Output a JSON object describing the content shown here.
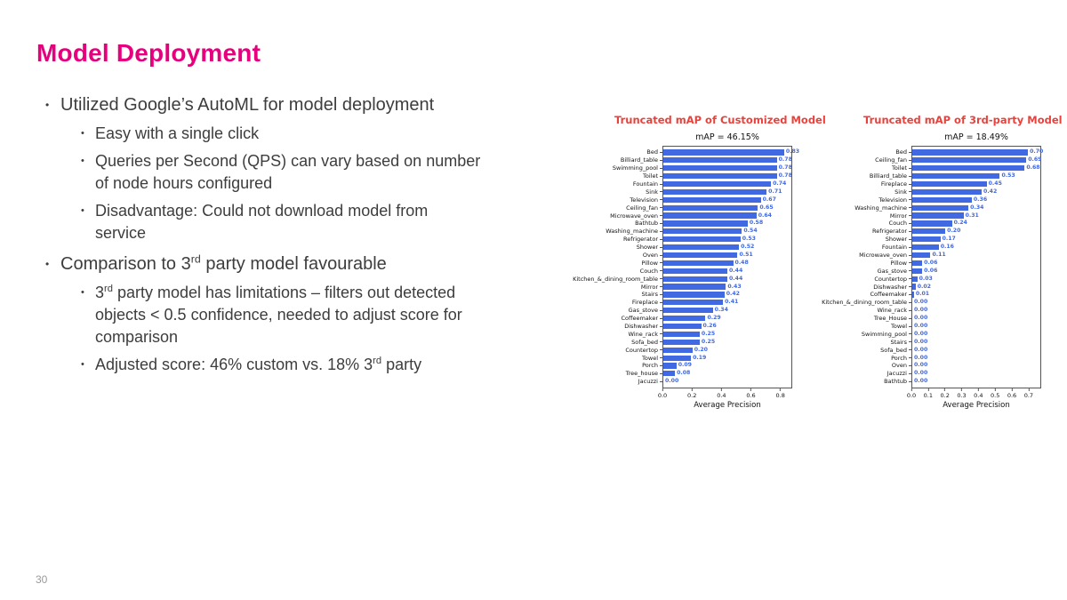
{
  "slide": {
    "title": "Model Deployment",
    "title_color": "#e6007e",
    "page_number": "30"
  },
  "bullets": [
    {
      "level": 1,
      "segments": [
        {
          "t": "Utilized Google’s AutoML for model deployment"
        }
      ]
    },
    {
      "level": 2,
      "segments": [
        {
          "t": "Easy with a single click"
        }
      ]
    },
    {
      "level": 2,
      "segments": [
        {
          "t": "Queries per Second (QPS) can vary based on number of node hours configured"
        }
      ]
    },
    {
      "level": 2,
      "segments": [
        {
          "t": "Disadvantage: Could not download model from service"
        }
      ]
    },
    {
      "level": 1,
      "segments": [
        {
          "t": "Comparison to 3"
        },
        {
          "t": "rd",
          "sup": true
        },
        {
          "t": " party model favourable"
        }
      ]
    },
    {
      "level": 2,
      "segments": [
        {
          "t": "3"
        },
        {
          "t": "rd",
          "sup": true
        },
        {
          "t": " party model has limitations – filters out detected objects < 0.5 confidence, needed to adjust score for comparison"
        }
      ]
    },
    {
      "level": 2,
      "segments": [
        {
          "t": "Adjusted score: 46% custom vs. 18% 3"
        },
        {
          "t": "rd",
          "sup": true
        },
        {
          "t": " party"
        }
      ]
    }
  ],
  "chart_data": [
    {
      "type": "bar",
      "orientation": "horizontal",
      "title": "Truncated mAP of Customized Model",
      "title_color": "#e8423c",
      "subtitle": "mAP = 46.15%",
      "xlabel": "Average Precision",
      "xticks": [
        0.0,
        0.2,
        0.4,
        0.6,
        0.8
      ],
      "xlim": [
        0,
        0.88
      ],
      "grid": false,
      "bar_color": "#4169e1",
      "value_color": "#4169e1",
      "categories": [
        "Bed",
        "Billiard_table",
        "Swimming_pool",
        "Toilet",
        "Fountain",
        "Sink",
        "Television",
        "Ceiling_fan",
        "Microwave_oven",
        "Bathtub",
        "Washing_machine",
        "Refrigerator",
        "Shower",
        "Oven",
        "Pillow",
        "Couch",
        "Kitchen_&_dining_room_table",
        "Mirror",
        "Stairs",
        "Fireplace",
        "Gas_stove",
        "Coffeemaker",
        "Dishwasher",
        "Wine_rack",
        "Sofa_bed",
        "Countertop",
        "Towel",
        "Porch",
        "Tree_house",
        "Jacuzzi"
      ],
      "values": [
        0.83,
        0.78,
        0.78,
        0.78,
        0.74,
        0.71,
        0.67,
        0.65,
        0.64,
        0.58,
        0.54,
        0.53,
        0.52,
        0.51,
        0.48,
        0.44,
        0.44,
        0.43,
        0.42,
        0.41,
        0.34,
        0.29,
        0.26,
        0.25,
        0.25,
        0.2,
        0.19,
        0.09,
        0.08,
        0.0
      ]
    },
    {
      "type": "bar",
      "orientation": "horizontal",
      "title": "Truncated mAP of 3rd-party Model",
      "title_color": "#e8423c",
      "subtitle": "mAP = 18.49%",
      "xlabel": "Average Precision",
      "xticks": [
        0.0,
        0.1,
        0.2,
        0.3,
        0.4,
        0.5,
        0.6,
        0.7
      ],
      "xlim": [
        0,
        0.775
      ],
      "grid": false,
      "bar_color": "#4169e1",
      "value_color": "#4169e1",
      "categories": [
        "Bed",
        "Ceiling_fan",
        "Toilet",
        "Billiard_table",
        "Fireplace",
        "Sink",
        "Television",
        "Washing_machine",
        "Mirror",
        "Couch",
        "Refrigerator",
        "Shower",
        "Fountain",
        "Microwave_oven",
        "Pillow",
        "Gas_stove",
        "Countertop",
        "Dishwasher",
        "Coffeemaker",
        "Kitchen_&_dining_room_table",
        "Wine_rack",
        "Tree_House",
        "Towel",
        "Swimming_pool",
        "Stairs",
        "Sofa_bed",
        "Porch",
        "Oven",
        "Jacuzzi",
        "Bathtub"
      ],
      "values": [
        0.7,
        0.69,
        0.68,
        0.53,
        0.45,
        0.42,
        0.36,
        0.34,
        0.31,
        0.24,
        0.2,
        0.17,
        0.16,
        0.11,
        0.06,
        0.06,
        0.03,
        0.02,
        0.01,
        0.0,
        0.0,
        0.0,
        0.0,
        0.0,
        0.0,
        0.0,
        0.0,
        0.0,
        0.0,
        0.0
      ]
    }
  ]
}
